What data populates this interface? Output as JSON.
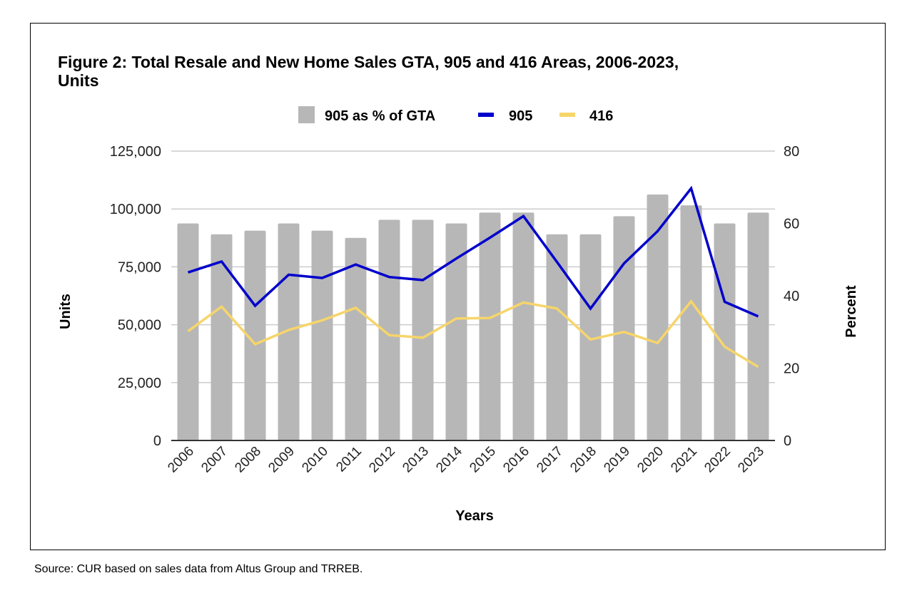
{
  "chart_data": {
    "type": "bar",
    "title_line1": "Figure 2: Total Resale and New Home Sales GTA, 905 and 416 Areas, 2006-2023,",
    "title_line2": "Units",
    "xlabel": "Years",
    "ylabel": "Units",
    "y2label": "Percent",
    "ylim": [
      0,
      125000
    ],
    "y2lim": [
      0,
      80
    ],
    "yticks": [
      "0",
      "25,000",
      "50,000",
      "75,000",
      "100,000",
      "125,000"
    ],
    "y2ticks": [
      "0",
      "20",
      "40",
      "60",
      "80"
    ],
    "grid": true,
    "legend_position": "top-center",
    "categories": [
      "2006",
      "2007",
      "2008",
      "2009",
      "2010",
      "2011",
      "2012",
      "2013",
      "2014",
      "2015",
      "2016",
      "2017",
      "2018",
      "2019",
      "2020",
      "2021",
      "2022",
      "2023"
    ],
    "series": [
      {
        "name": "905 as % of GTA",
        "kind": "bar",
        "axis": "right",
        "color": "#b7b7b7",
        "values": [
          60,
          57,
          58,
          60,
          58,
          56,
          61,
          61,
          60,
          63,
          63,
          57,
          57,
          62,
          68,
          65,
          60,
          63
        ]
      },
      {
        "name": "905",
        "kind": "line",
        "axis": "left",
        "color": "#0000cc",
        "values": [
          72600,
          77300,
          58200,
          71600,
          70200,
          76000,
          70600,
          69300,
          78600,
          87600,
          96900,
          77100,
          57000,
          76500,
          90400,
          108900,
          59900,
          53600
        ]
      },
      {
        "name": "416",
        "kind": "line",
        "axis": "left",
        "color": "#f6d56a",
        "values": [
          47200,
          57800,
          41600,
          47700,
          51900,
          57300,
          45500,
          44400,
          52700,
          52900,
          59600,
          57000,
          43600,
          46900,
          42100,
          60100,
          40500,
          31800
        ]
      }
    ]
  },
  "source": "Source: CUR based on sales data from Altus Group and TRREB."
}
